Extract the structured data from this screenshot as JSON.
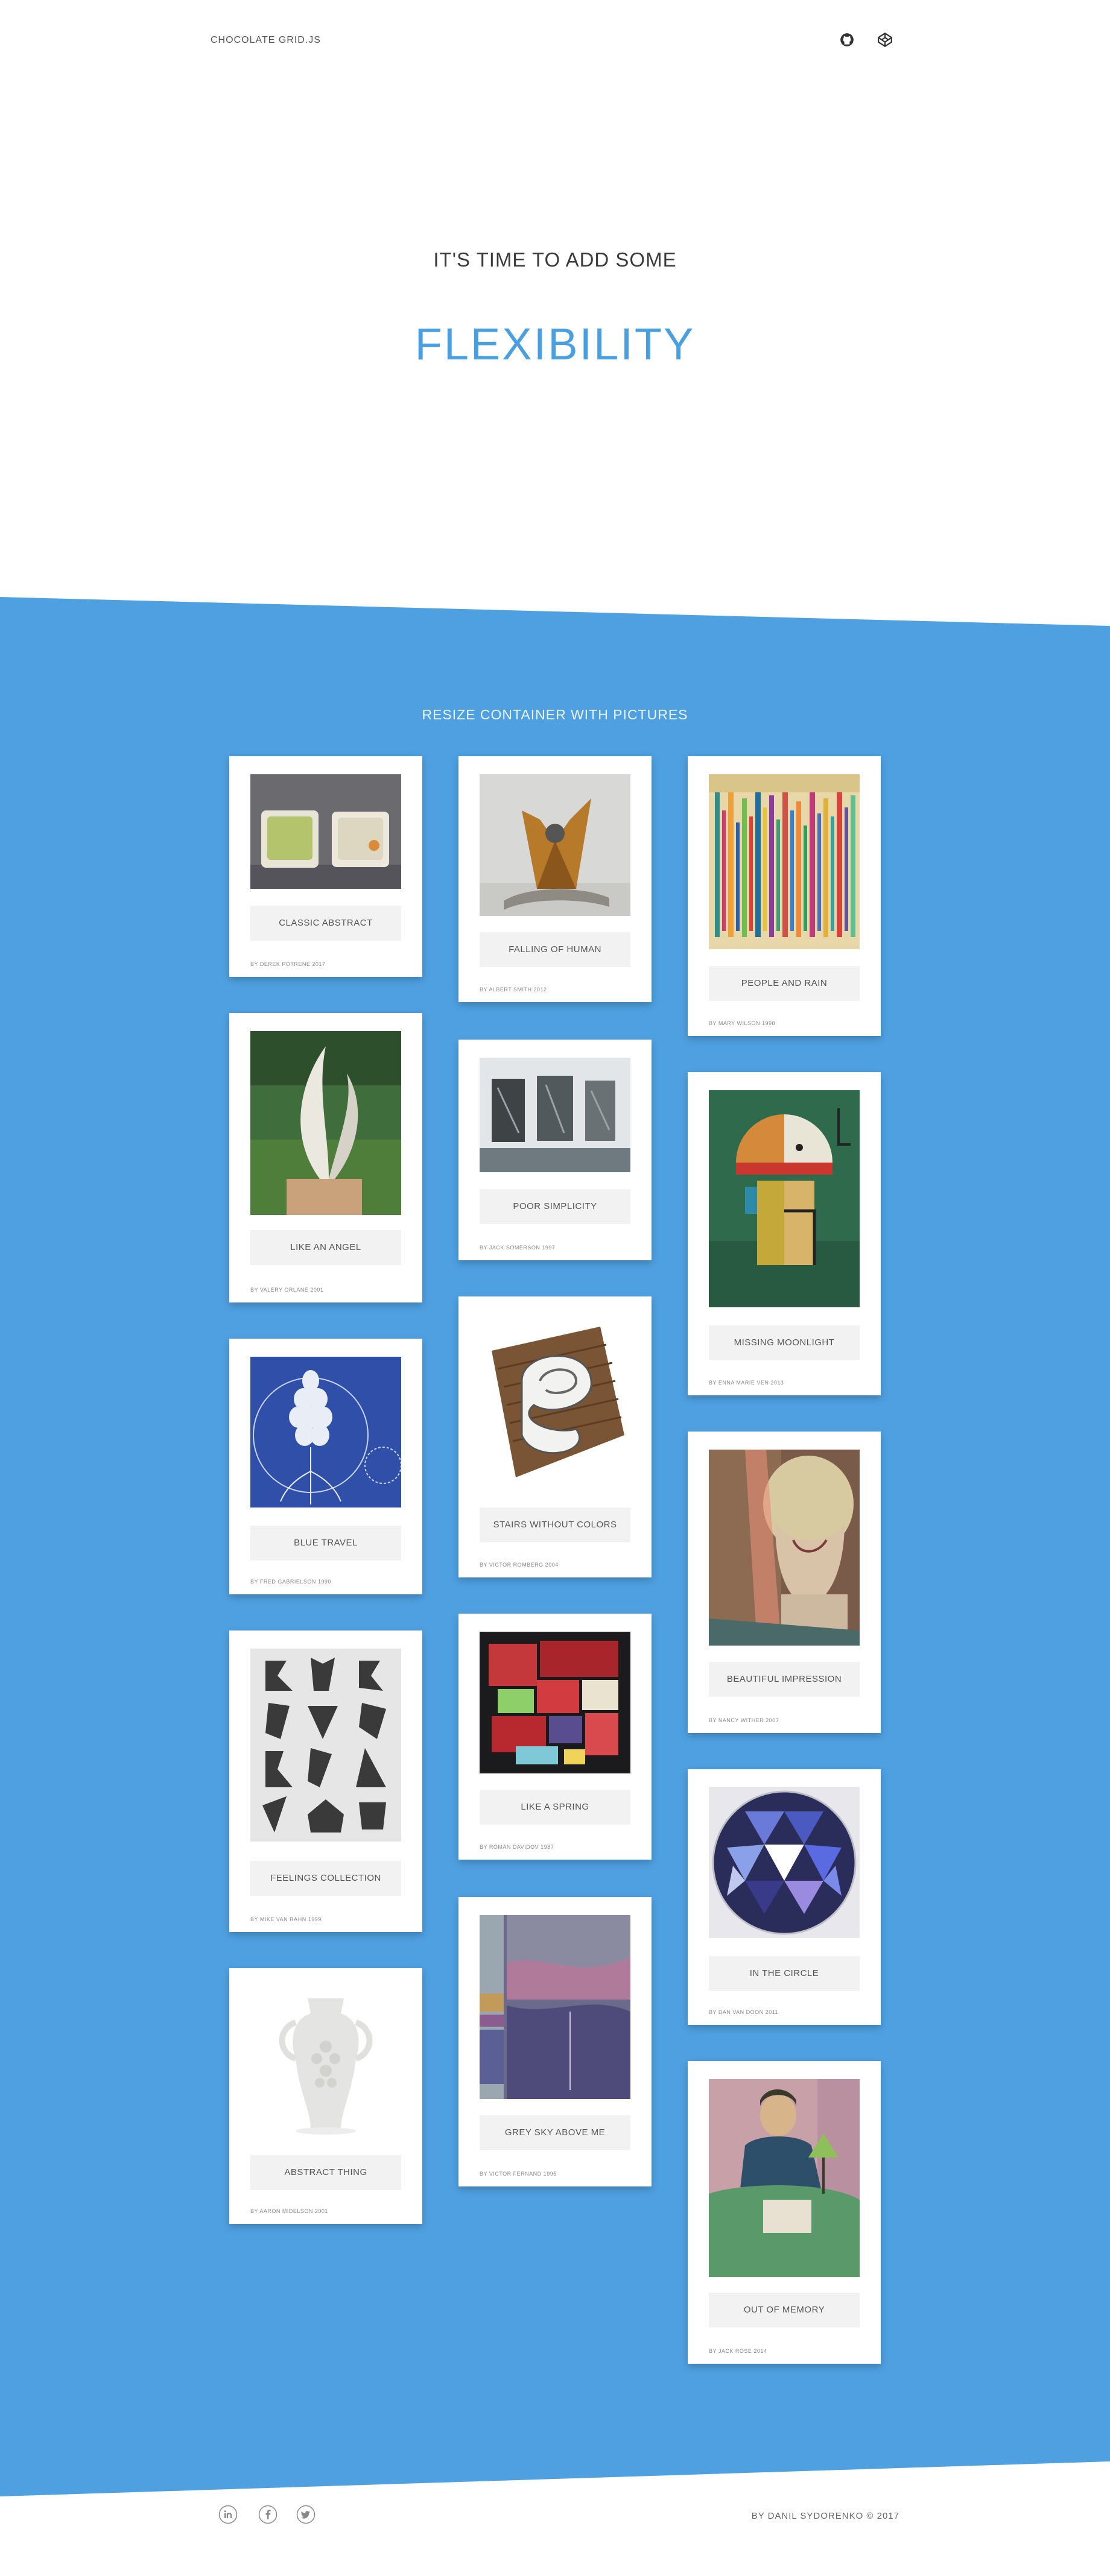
{
  "header": {
    "logo": "CHOCOLATE GRID.JS",
    "icons": [
      "github-icon",
      "codepen-icon"
    ]
  },
  "hero": {
    "subtitle": "IT'S TIME TO ADD SOME",
    "title": "FLEXIBILITY"
  },
  "gallery": {
    "title": "RESIZE CONTAINER WITH PICTURES",
    "cards": [
      {
        "caption": "CLASSIC ABSTRACT",
        "author": "BY DEREK POTRENE 2017"
      },
      {
        "caption": "FALLING OF HUMAN",
        "author": "BY ALBERT SMITH 2012"
      },
      {
        "caption": "PEOPLE AND RAIN",
        "author": "BY MARY WILSON 1998"
      },
      {
        "caption": "LIKE AN ANGEL",
        "author": "BY VALERY ORLANE 2001"
      },
      {
        "caption": "POOR SIMPLICITY",
        "author": "BY JACK SOMERSON 1997"
      },
      {
        "caption": "MISSING MOONLIGHT",
        "author": "BY ENNA MARIE VEN 2013"
      },
      {
        "caption": "BLUE TRAVEL",
        "author": "BY FRED GABRIELSON 1990"
      },
      {
        "caption": "STAIRS WITHOUT COLORS",
        "author": "BY VICTOR ROMBERG 2004"
      },
      {
        "caption": "BEAUTIFUL IMPRESSION",
        "author": "BY NANCY WITHER 2007"
      },
      {
        "caption": "FEELINGS COLLECTION",
        "author": "BY MIKE VAN RAHN 1999"
      },
      {
        "caption": "LIKE A SPRING",
        "author": "BY ROMAN DAVIDOV 1987"
      },
      {
        "caption": "IN THE CIRCLE",
        "author": "BY DAN VAN DOON 2011"
      },
      {
        "caption": "ABSTRACT THING",
        "author": "BY AARON MIDELSON 2001"
      },
      {
        "caption": "GREY SKY ABOVE ME",
        "author": "BY VICTOR FERNAND 1995"
      },
      {
        "caption": "OUT OF MEMORY",
        "author": "BY JACK ROSE 2014"
      }
    ]
  },
  "footer": {
    "icons": [
      "linkedin-icon",
      "facebook-icon",
      "twitter-icon"
    ],
    "credit": "BY DANIL SYDORENKO © 2017"
  }
}
